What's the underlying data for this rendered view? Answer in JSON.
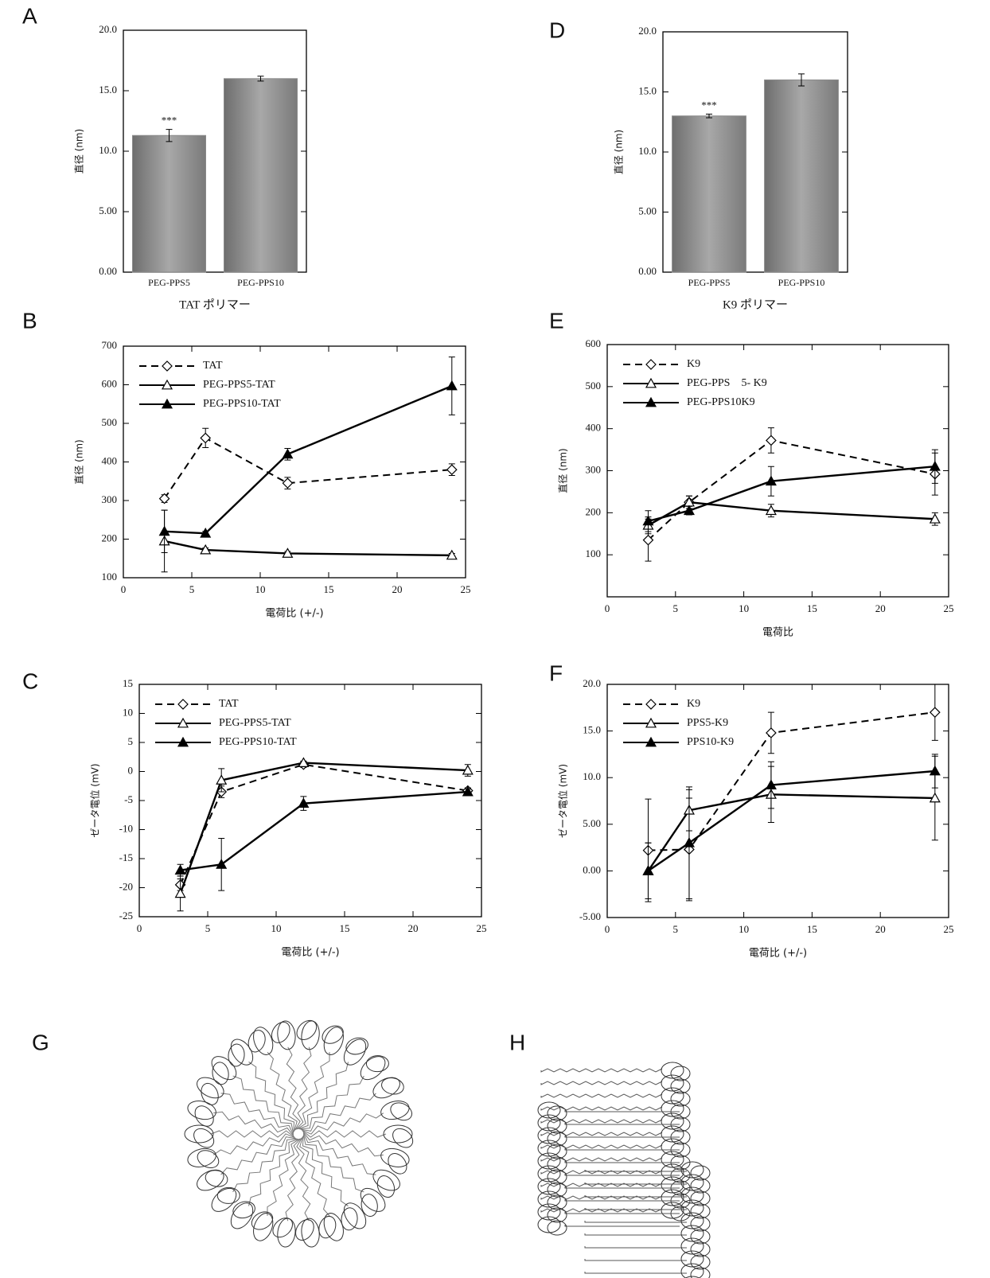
{
  "chart_data": [
    {
      "type": "bar",
      "panel": "A",
      "ylabel": "直径 (nm)",
      "xlabel": "TAT ポリマー",
      "categories": [
        "PEG-PPS5",
        "PEG-PPS10"
      ],
      "values": [
        11.3,
        16.0
      ],
      "errors": [
        0.5,
        0.2
      ],
      "color": "#8a8a8a",
      "annotation": "***",
      "ylim": [
        0,
        20
      ],
      "yticks": [
        {
          "value": 0,
          "label": "0.00"
        },
        {
          "value": 5,
          "label": "5.00"
        },
        {
          "value": 10,
          "label": "10.0"
        },
        {
          "value": 15,
          "label": "15.0"
        },
        {
          "value": 20,
          "label": "20.0"
        }
      ]
    },
    {
      "type": "line",
      "panel": "B",
      "ylabel": "直径 (nm)",
      "xlabel": "電荷比 (+/-)",
      "legend": "upper left",
      "x": [
        3,
        6,
        12,
        24
      ],
      "series": [
        {
          "name": "TAT",
          "color": "#000000",
          "style": "dashed",
          "marker": "diamond-open",
          "values": [
            305,
            462,
            345,
            380
          ],
          "errors": [
            10,
            25,
            15,
            15
          ]
        },
        {
          "name": "PEG-PPS5-TAT",
          "color": "#000000",
          "style": "solid",
          "marker": "triangle-open",
          "values": [
            195,
            172,
            163,
            158
          ],
          "errors": [
            80,
            5,
            5,
            5
          ]
        },
        {
          "name": "PEG-PPS10-TAT",
          "color": "#000000",
          "style": "solid",
          "marker": "triangle-filled",
          "values": [
            220,
            215,
            420,
            597
          ],
          "errors": [
            55,
            5,
            15,
            75
          ]
        }
      ],
      "xlim": [
        0,
        25
      ],
      "xticks": [
        0,
        5,
        10,
        15,
        20,
        25
      ],
      "ylim": [
        100,
        700
      ],
      "yticks": [
        100,
        200,
        300,
        400,
        500,
        600,
        700
      ]
    },
    {
      "type": "line",
      "panel": "C",
      "ylabel": "ゼータ電位 (mV)",
      "xlabel": "電荷比 (+/-)",
      "legend": "upper left",
      "x": [
        3,
        6,
        12,
        24
      ],
      "series": [
        {
          "name": "TAT",
          "color": "#000000",
          "style": "dashed",
          "marker": "diamond-open",
          "values": [
            -19.5,
            -3.5,
            1.2,
            -3.3
          ],
          "errors": [
            1,
            1,
            0.5,
            0.5
          ]
        },
        {
          "name": "PEG-PPS5-TAT",
          "color": "#000000",
          "style": "solid",
          "marker": "triangle-open",
          "values": [
            -21,
            -1.5,
            1.5,
            0.2
          ],
          "errors": [
            3,
            2,
            0.3,
            1
          ]
        },
        {
          "name": "PEG-PPS10-TAT",
          "color": "#000000",
          "style": "solid",
          "marker": "triangle-filled",
          "values": [
            -17,
            -16,
            -5.5,
            -3.5
          ],
          "errors": [
            1,
            4.5,
            1.2,
            0.5
          ]
        }
      ],
      "xlim": [
        0,
        25
      ],
      "xticks": [
        0,
        5,
        10,
        15,
        20,
        25
      ],
      "ylim": [
        -25,
        15
      ],
      "yticks": [
        -25,
        -20,
        -15,
        -10,
        -5,
        0,
        5,
        10,
        15
      ]
    },
    {
      "type": "bar",
      "panel": "D",
      "ylabel": "直径 (nm)",
      "xlabel": "K9 ポリマー",
      "categories": [
        "PEG-PPS5",
        "PEG-PPS10"
      ],
      "values": [
        13.0,
        16.0
      ],
      "errors": [
        0.15,
        0.5
      ],
      "color": "#8a8a8a",
      "annotation": "***",
      "ylim": [
        0,
        20
      ],
      "yticks": [
        {
          "value": 0,
          "label": "0.00"
        },
        {
          "value": 5,
          "label": "5.00"
        },
        {
          "value": 10,
          "label": "10.0"
        },
        {
          "value": 15,
          "label": "15.0"
        },
        {
          "value": 20,
          "label": "20.0"
        }
      ]
    },
    {
      "type": "line",
      "panel": "E",
      "ylabel": "直径 (nm)",
      "xlabel": "電荷比",
      "legend": "upper left",
      "x": [
        3,
        6,
        12,
        24
      ],
      "series": [
        {
          "name": "K9",
          "color": "#000000",
          "style": "dashed",
          "marker": "diamond-open",
          "values": [
            135,
            225,
            372,
            292
          ],
          "errors": [
            50,
            15,
            30,
            50
          ]
        },
        {
          "name": "PEG-PPS　5- K9",
          "color": "#000000",
          "style": "solid",
          "marker": "triangle-open",
          "values": [
            170,
            225,
            205,
            185
          ],
          "errors": [
            20,
            15,
            15,
            15
          ]
        },
        {
          "name": "PEG-PPS10K9",
          "color": "#000000",
          "style": "solid",
          "marker": "triangle-filled",
          "values": [
            180,
            205,
            275,
            310
          ],
          "errors": [
            25,
            10,
            35,
            40
          ]
        }
      ],
      "xlim": [
        0,
        25
      ],
      "xticks": [
        0,
        5,
        10,
        15,
        20,
        25
      ],
      "ylim": [
        0,
        600
      ],
      "yticks": [
        100,
        200,
        300,
        400,
        500,
        600
      ]
    },
    {
      "type": "line",
      "panel": "F",
      "ylabel": "ゼータ電位 (mV)",
      "xlabel": "電荷比 (+/-)",
      "legend": "upper left",
      "x": [
        3,
        6,
        12,
        24
      ],
      "series": [
        {
          "name": "K9",
          "color": "#000000",
          "style": "dashed",
          "marker": "diamond-open",
          "values": [
            2.2,
            2.3,
            14.8,
            17.0
          ],
          "errors": [
            5.5,
            5.5,
            2.2,
            3
          ]
        },
        {
          "name": "PPS5-K9",
          "color": "#000000",
          "style": "solid",
          "marker": "triangle-open",
          "values": [
            0,
            6.5,
            8.2,
            7.8
          ],
          "errors": [
            3,
            2.2,
            3,
            4.5
          ]
        },
        {
          "name": "PPS10-K9",
          "color": "#000000",
          "style": "solid",
          "marker": "triangle-filled",
          "values": [
            0,
            3,
            9.2,
            10.7
          ],
          "errors": [
            3,
            6,
            2.5,
            1.8
          ]
        }
      ],
      "xlim": [
        0,
        25
      ],
      "xticks": [
        0,
        5,
        10,
        15,
        20,
        25
      ],
      "ylim": [
        -5,
        20
      ],
      "yticks": [
        {
          "value": -5,
          "label": "-5.00"
        },
        {
          "value": 0,
          "label": "0.00"
        },
        {
          "value": 5,
          "label": "5.00"
        },
        {
          "value": 10,
          "label": "10.0"
        },
        {
          "value": 15,
          "label": "15.0"
        },
        {
          "value": 20,
          "label": "20.0"
        }
      ]
    }
  ],
  "diagrams": [
    {
      "panel": "G"
    },
    {
      "panel": "H"
    }
  ]
}
